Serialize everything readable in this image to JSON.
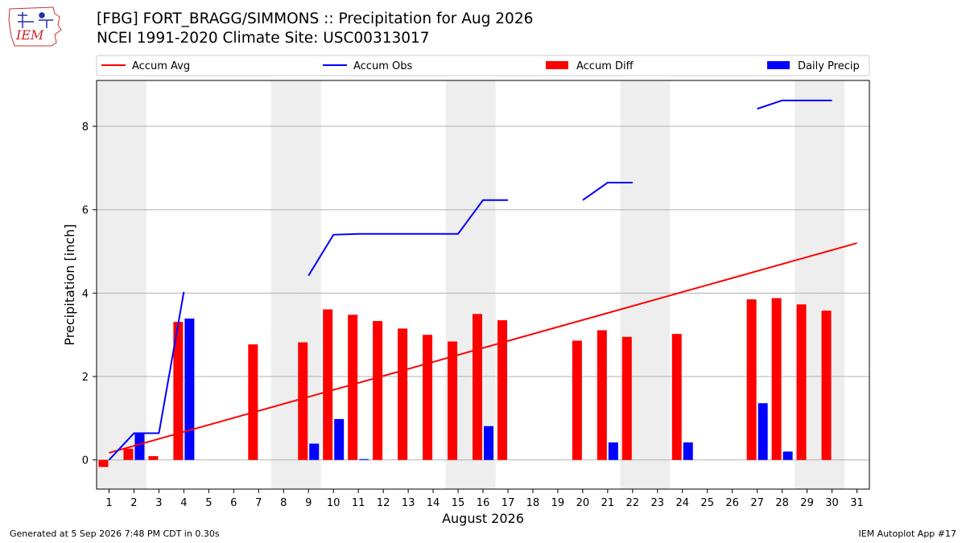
{
  "header": {
    "title_line1": "[FBG] FORT_BRAGG/SIMMONS :: Precipitation for Aug 2026",
    "title_line2": "NCEI 1991-2020 Climate Site: USC00313017",
    "logo_text": "IEM"
  },
  "footer": {
    "left": "Generated at 5 Sep 2026 7:48 PM CDT in 0.30s",
    "right": "IEM Autoplot App #17"
  },
  "colors": {
    "accum_avg": "#ff0000",
    "accum_obs": "#0000ff",
    "accum_diff": "#ff0000",
    "daily_precip": "#0000ff",
    "weekend_shade": "#eeeeee",
    "grid": "#b0b0b0"
  },
  "chart_data": {
    "type": "bar",
    "xlabel": "August 2026",
    "ylabel": "Precipitation [inch]",
    "xlim": [
      0.5,
      31.5
    ],
    "ylim": [
      -0.7,
      9.1
    ],
    "yticks": [
      0,
      2,
      4,
      6,
      8
    ],
    "x_ticks": [
      1,
      2,
      3,
      4,
      5,
      6,
      7,
      8,
      9,
      10,
      11,
      12,
      13,
      14,
      15,
      16,
      17,
      18,
      19,
      20,
      21,
      22,
      23,
      24,
      25,
      26,
      27,
      28,
      29,
      30,
      31
    ],
    "grid": "horizontal",
    "legend": {
      "position": "top",
      "entries": [
        {
          "label": "Accum Avg",
          "kind": "line",
          "color": "#ff0000"
        },
        {
          "label": "Accum Obs",
          "kind": "line",
          "color": "#0000ff"
        },
        {
          "label": "Accum Diff",
          "kind": "bar",
          "color": "#ff0000"
        },
        {
          "label": "Daily Precip",
          "kind": "bar",
          "color": "#0000ff"
        }
      ]
    },
    "weekend_days": [
      1,
      2,
      8,
      9,
      15,
      16,
      22,
      23,
      29,
      30
    ],
    "series": [
      {
        "name": "Accum Avg",
        "kind": "line",
        "x": [
          1,
          31
        ],
        "y": [
          0.17,
          5.2
        ]
      },
      {
        "name": "Accum Obs",
        "kind": "line",
        "segments": [
          {
            "x": [
              1,
              2,
              3,
              4
            ],
            "y": [
              0.0,
              0.64,
              0.64,
              4.03
            ]
          },
          {
            "x": [
              9,
              10,
              11,
              12,
              13,
              14,
              15,
              16,
              17
            ],
            "y": [
              4.42,
              5.4,
              5.42,
              5.42,
              5.42,
              5.42,
              5.42,
              6.23,
              6.23
            ]
          },
          {
            "x": [
              20,
              21,
              22
            ],
            "y": [
              6.23,
              6.65,
              6.65
            ]
          },
          {
            "x": [
              27,
              28,
              29,
              30
            ],
            "y": [
              8.42,
              8.62,
              8.62,
              8.62
            ]
          }
        ]
      },
      {
        "name": "Accum Diff",
        "kind": "bar",
        "x": [
          1,
          2,
          3,
          4,
          7,
          9,
          10,
          11,
          12,
          13,
          14,
          15,
          16,
          17,
          20,
          21,
          22,
          24,
          27,
          28,
          29,
          30
        ],
        "values": [
          -0.17,
          0.27,
          0.09,
          3.31,
          2.77,
          2.82,
          3.61,
          3.48,
          3.33,
          3.15,
          3.0,
          2.84,
          3.5,
          3.35,
          2.86,
          3.11,
          2.95,
          3.02,
          3.85,
          3.88,
          3.73,
          3.58
        ]
      },
      {
        "name": "Daily Precip",
        "kind": "bar",
        "x": [
          2,
          4,
          9,
          10,
          11,
          16,
          21,
          24,
          27,
          28
        ],
        "values": [
          0.64,
          3.39,
          0.39,
          0.98,
          0.02,
          0.81,
          0.42,
          0.42,
          1.36,
          0.2
        ]
      }
    ]
  }
}
